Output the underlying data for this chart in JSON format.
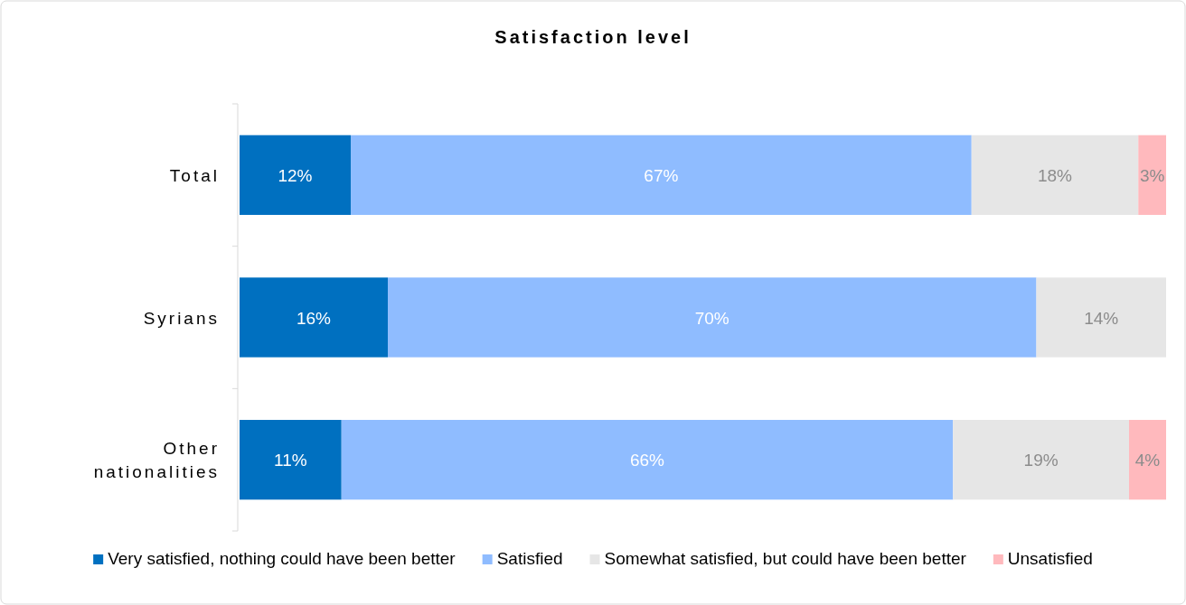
{
  "chart_data": {
    "type": "bar",
    "orientation": "horizontal",
    "stacked": true,
    "title": "Satisfaction level",
    "categories": [
      "Total",
      "Syrians",
      "Other nationalities"
    ],
    "xlim": [
      0,
      100
    ],
    "series": [
      {
        "name": "Very satisfied, nothing could have been better",
        "color": "#0070c0",
        "values": [
          12,
          16,
          11
        ],
        "value_labels": [
          "12%",
          "16%",
          "11%"
        ]
      },
      {
        "name": "Satisfied",
        "color": "#8fbcff",
        "values": [
          67,
          70,
          66
        ],
        "value_labels": [
          "67%",
          "70%",
          "66%"
        ]
      },
      {
        "name": "Somewhat satisfied, but could have been better",
        "color": "#e6e6e6",
        "values": [
          18,
          14,
          19
        ],
        "value_labels": [
          "18%",
          "14%",
          "19%"
        ]
      },
      {
        "name": "Unsatisfied",
        "color": "#ffb9bd",
        "values": [
          3,
          null,
          4
        ],
        "value_labels": [
          "3%",
          null,
          "4%"
        ]
      }
    ],
    "legend": "bottom"
  }
}
